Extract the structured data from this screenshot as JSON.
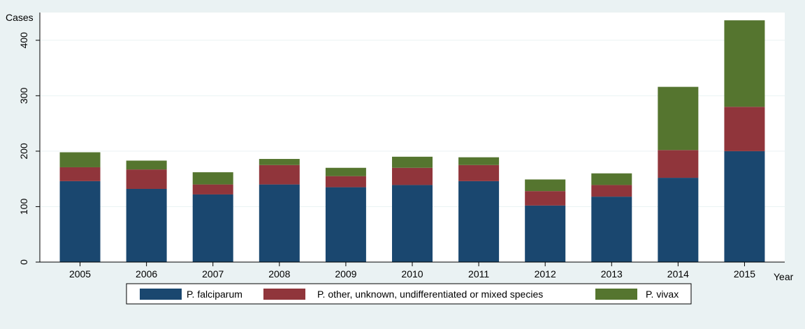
{
  "chart_data": {
    "type": "bar",
    "stacked": true,
    "title": "",
    "xlabel": "Year",
    "ylabel": "Cases",
    "ylim": [
      0,
      450
    ],
    "yticks": [
      0,
      100,
      200,
      300,
      400
    ],
    "grid": true,
    "legend_position": "bottom",
    "categories": [
      "2005",
      "2006",
      "2007",
      "2008",
      "2009",
      "2010",
      "2011",
      "2012",
      "2013",
      "2014",
      "2015"
    ],
    "series": [
      {
        "name": "P. falciparum",
        "color": "#1a476f",
        "values": [
          146,
          132,
          122,
          140,
          135,
          139,
          146,
          102,
          118,
          152,
          200
        ]
      },
      {
        "name": "P. other, unknown, undifferentiated or mixed species",
        "color": "#90353b",
        "values": [
          25,
          35,
          18,
          35,
          20,
          31,
          29,
          26,
          21,
          50,
          80
        ]
      },
      {
        "name": "P. vivax",
        "color": "#55752f",
        "values": [
          27,
          16,
          22,
          11,
          15,
          20,
          14,
          21,
          21,
          114,
          156
        ]
      }
    ]
  },
  "colors": {
    "outer_background": "#eaf2f3",
    "plot_background": "#ffffff",
    "gridline": "#eaf2f3"
  }
}
